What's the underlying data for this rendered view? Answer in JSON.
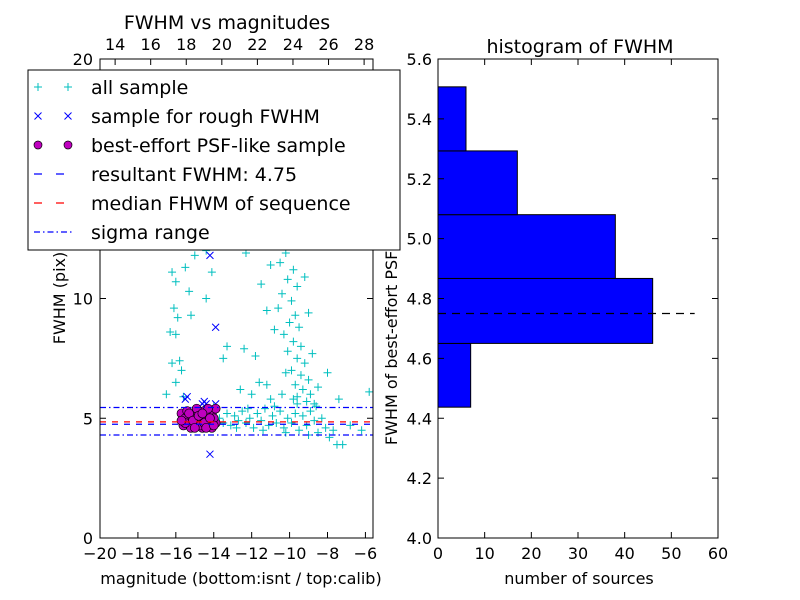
{
  "chart_data": [
    {
      "type": "scatter",
      "title": "FWHM vs magnitudes",
      "xlabel": "magnitude (bottom:isnt / top:calib)",
      "ylabel": "FWHM (pix)",
      "xlim": [
        -20,
        -5.6
      ],
      "ylim": [
        0,
        20
      ],
      "xticks": [
        "−20",
        "−18",
        "−16",
        "−14",
        "−12",
        "−10",
        "−8",
        "−6"
      ],
      "xtick_values": [
        -20,
        -18,
        -16,
        -14,
        -12,
        -10,
        -8,
        -6
      ],
      "yticks": [
        "0",
        "5",
        "10",
        "15",
        "20"
      ],
      "ytick_values": [
        0,
        5,
        10,
        15,
        20
      ],
      "top_xlim": [
        13.15,
        28.5
      ],
      "top_xticks": [
        "14",
        "16",
        "18",
        "20",
        "22",
        "24",
        "26",
        "28"
      ],
      "top_xtick_values": [
        14,
        16,
        18,
        20,
        22,
        24,
        26,
        28
      ],
      "legend": {
        "placement": "upper-left",
        "entries": [
          "all sample",
          "sample for rough FWHM",
          "best-effort PSF-like sample",
          "resultant FWHM: 4.75",
          "median FHWM of sequence",
          "sigma range"
        ]
      },
      "colors": {
        "all": "#00bfbf",
        "rough": "#0000ff",
        "best": "#bf00bf",
        "resultant": "#0000ff",
        "median": "#ff0000",
        "sigma": "#0000ff"
      },
      "hlines": {
        "resultant": 4.75,
        "median": 4.85,
        "sigma": [
          4.3,
          5.45
        ]
      },
      "series": [
        {
          "name": "all sample",
          "marker": "+",
          "points": [
            [
              -10.2,
              11.9
            ],
            [
              -10.5,
              11.5
            ],
            [
              -9.8,
              11.2
            ],
            [
              -10.1,
              10.8
            ],
            [
              -9.6,
              10.5
            ],
            [
              -10.4,
              10.2
            ],
            [
              -9.9,
              9.9
            ],
            [
              -10.6,
              9.6
            ],
            [
              -9.7,
              9.3
            ],
            [
              -10.0,
              9.0
            ],
            [
              -9.5,
              8.8
            ],
            [
              -10.3,
              8.5
            ],
            [
              -9.8,
              8.2
            ],
            [
              -9.4,
              8.0
            ],
            [
              -10.1,
              7.8
            ],
            [
              -9.6,
              7.5
            ],
            [
              -9.2,
              7.3
            ],
            [
              -9.9,
              7.0
            ],
            [
              -9.4,
              6.8
            ],
            [
              -9.0,
              6.6
            ],
            [
              -9.7,
              6.4
            ],
            [
              -9.3,
              6.2
            ],
            [
              -8.9,
              6.0
            ],
            [
              -9.6,
              5.9
            ],
            [
              -9.1,
              5.7
            ],
            [
              -8.7,
              5.6
            ],
            [
              -10.2,
              6.9
            ],
            [
              -10.8,
              8.7
            ],
            [
              -11.2,
              9.5
            ],
            [
              -11.5,
              10.6
            ],
            [
              -11.0,
              11.4
            ],
            [
              -12.3,
              11.9
            ],
            [
              -11.8,
              7.6
            ],
            [
              -12.4,
              7.9
            ],
            [
              -11.6,
              6.5
            ],
            [
              -12.0,
              6.0
            ],
            [
              -8.5,
              6.3
            ],
            [
              -8.0,
              6.9
            ],
            [
              -7.4,
              5.8
            ],
            [
              -5.8,
              6.1
            ],
            [
              -9.2,
              10.9
            ],
            [
              -9.0,
              9.4
            ],
            [
              -8.8,
              7.7
            ],
            [
              -16.2,
              11.1
            ],
            [
              -15.5,
              11.3
            ],
            [
              -15.0,
              11.8
            ],
            [
              -16.0,
              10.7
            ],
            [
              -15.3,
              10.3
            ],
            [
              -16.1,
              9.6
            ],
            [
              -15.9,
              9.2
            ],
            [
              -15.2,
              9.3
            ],
            [
              -16.3,
              8.6
            ],
            [
              -16.0,
              8.5
            ],
            [
              -15.8,
              7.4
            ],
            [
              -16.2,
              7.3
            ],
            [
              -15.7,
              7.0
            ],
            [
              -16.0,
              6.5
            ],
            [
              -15.6,
              5.9
            ],
            [
              -14.4,
              10.0
            ],
            [
              -14.4,
              12.0
            ],
            [
              -14.1,
              11.1
            ],
            [
              -13.5,
              7.5
            ],
            [
              -13.3,
              8.0
            ],
            [
              -14.0,
              5.5
            ],
            [
              -16.5,
              6.0
            ],
            [
              -13.7,
              5.0
            ],
            [
              -13.5,
              4.8
            ],
            [
              -13.3,
              5.2
            ],
            [
              -13.1,
              4.7
            ],
            [
              -12.9,
              5.1
            ],
            [
              -12.7,
              4.9
            ],
            [
              -12.5,
              5.3
            ],
            [
              -12.3,
              4.8
            ],
            [
              -12.1,
              5.0
            ],
            [
              -11.9,
              4.6
            ],
            [
              -11.7,
              5.2
            ],
            [
              -11.5,
              4.9
            ],
            [
              -11.3,
              5.4
            ],
            [
              -11.1,
              4.7
            ],
            [
              -10.9,
              5.1
            ],
            [
              -10.7,
              4.8
            ],
            [
              -10.5,
              5.3
            ],
            [
              -10.3,
              4.6
            ],
            [
              -10.1,
              5.0
            ],
            [
              -9.9,
              4.8
            ],
            [
              -9.7,
              5.2
            ],
            [
              -9.5,
              4.5
            ],
            [
              -9.3,
              5.1
            ],
            [
              -9.1,
              4.7
            ],
            [
              -8.9,
              5.3
            ],
            [
              -8.7,
              4.9
            ],
            [
              -8.5,
              4.4
            ],
            [
              -8.3,
              5.0
            ],
            [
              -8.1,
              4.6
            ],
            [
              -7.9,
              4.2
            ],
            [
              -7.7,
              4.5
            ],
            [
              -7.5,
              3.9
            ],
            [
              -7.2,
              3.9
            ],
            [
              -6.8,
              4.7
            ],
            [
              -6.2,
              4.5
            ],
            [
              -12.8,
              4.6
            ],
            [
              -12.2,
              5.4
            ],
            [
              -11.4,
              4.5
            ],
            [
              -10.8,
              5.5
            ],
            [
              -10.2,
              4.4
            ],
            [
              -9.6,
              5.6
            ],
            [
              -9.0,
              4.3
            ],
            [
              -8.6,
              5.5
            ],
            [
              -13.9,
              4.9
            ],
            [
              -11.0,
              5.8
            ],
            [
              -10.4,
              6.0
            ],
            [
              -9.8,
              5.8
            ],
            [
              -12.6,
              6.2
            ],
            [
              -11.2,
              6.4
            ]
          ]
        },
        {
          "name": "sample for rough FWHM",
          "marker": "x",
          "points": [
            [
              -15.5,
              5.8
            ],
            [
              -15.4,
              5.9
            ],
            [
              -14.5,
              5.7
            ],
            [
              -14.4,
              5.6
            ],
            [
              -14.6,
              5.6
            ],
            [
              -13.9,
              5.6
            ],
            [
              -14.2,
              3.5
            ],
            [
              -13.9,
              8.8
            ],
            [
              -14.2,
              11.8
            ]
          ]
        },
        {
          "name": "best-effort PSF-like sample",
          "marker": "o",
          "points": [
            [
              -15.7,
              5.2
            ],
            [
              -15.5,
              5.0
            ],
            [
              -15.3,
              4.8
            ],
            [
              -15.1,
              5.1
            ],
            [
              -14.9,
              4.7
            ],
            [
              -14.7,
              5.0
            ],
            [
              -14.5,
              5.3
            ],
            [
              -14.3,
              4.9
            ],
            [
              -14.1,
              5.2
            ],
            [
              -13.9,
              4.8
            ],
            [
              -15.6,
              4.7
            ],
            [
              -15.4,
              5.3
            ],
            [
              -15.2,
              4.6
            ],
            [
              -15.0,
              5.2
            ],
            [
              -14.8,
              4.9
            ],
            [
              -14.6,
              4.6
            ],
            [
              -14.4,
              5.1
            ],
            [
              -14.2,
              4.7
            ],
            [
              -14.0,
              5.0
            ],
            [
              -13.9,
              5.4
            ],
            [
              -15.3,
              5.2
            ],
            [
              -14.9,
              5.4
            ],
            [
              -14.7,
              4.7
            ],
            [
              -14.5,
              4.8
            ],
            [
              -14.3,
              5.4
            ],
            [
              -14.1,
              4.6
            ],
            [
              -15.5,
              4.8
            ],
            [
              -15.1,
              4.9
            ],
            [
              -14.8,
              5.1
            ],
            [
              -14.4,
              4.6
            ],
            [
              -14.0,
              4.7
            ],
            [
              -15.7,
              4.9
            ],
            [
              -14.6,
              5.2
            ],
            [
              -14.2,
              5.0
            ],
            [
              -15.0,
              4.6
            ]
          ]
        }
      ]
    },
    {
      "type": "bar",
      "orientation": "horizontal",
      "title": "histogram of FWHM",
      "xlabel": "number of sources",
      "ylabel": "FWHM of best-effort PSF-like sources",
      "xlim": [
        0,
        60
      ],
      "ylim": [
        4.0,
        5.6
      ],
      "xticks": [
        "0",
        "10",
        "20",
        "30",
        "40",
        "50",
        "60"
      ],
      "xtick_values": [
        0,
        10,
        20,
        30,
        40,
        50,
        60
      ],
      "yticks": [
        "4.0",
        "4.2",
        "4.4",
        "4.6",
        "4.8",
        "5.0",
        "5.2",
        "5.4",
        "5.6"
      ],
      "ytick_values": [
        4.0,
        4.2,
        4.4,
        4.6,
        4.8,
        5.0,
        5.2,
        5.4,
        5.6
      ],
      "bin_edges": [
        4.437,
        4.65,
        4.867,
        5.08,
        5.293,
        5.507
      ],
      "values": [
        7,
        46,
        38,
        17,
        6
      ],
      "bar_color": "#0000ff",
      "hline": {
        "y": 4.75,
        "xmax": 55
      }
    }
  ]
}
